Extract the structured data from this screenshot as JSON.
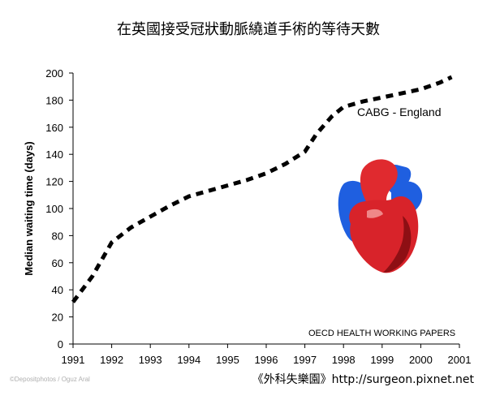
{
  "chart_data": {
    "type": "line",
    "title": "在英國接受冠狀動脈繞道手術的等待天數",
    "xlabel": "",
    "ylabel": "Median waiting time (days)",
    "xlim": [
      1991,
      2001
    ],
    "ylim": [
      0,
      200
    ],
    "x_ticks": [
      "1991",
      "1992",
      "1993",
      "1994",
      "1995",
      "1996",
      "1997",
      "1998",
      "1999",
      "2000",
      "2001"
    ],
    "y_ticks": [
      "0",
      "20",
      "40",
      "60",
      "80",
      "100",
      "120",
      "140",
      "160",
      "180",
      "200"
    ],
    "grid": false,
    "series": [
      {
        "name": "CABG - England",
        "style": "dashed",
        "color": "#000000",
        "x": [
          1991.0,
          1991.5,
          1992.0,
          1992.5,
          1993.0,
          1993.5,
          1994.0,
          1994.5,
          1995.0,
          1995.5,
          1996.0,
          1996.5,
          1997.0,
          1997.3,
          1997.7,
          1998.0,
          1998.5,
          1999.0,
          1999.5,
          2000.0,
          2000.5,
          2000.8
        ],
        "y": [
          31,
          50,
          75,
          86,
          94,
          102,
          109,
          113,
          117,
          121,
          126,
          133,
          142,
          155,
          168,
          175,
          179,
          182,
          185,
          188,
          193,
          197
        ]
      }
    ],
    "annotations": {
      "series_label": "CABG - England",
      "source": "OECD HEALTH WORKING PAPERS"
    }
  },
  "footer": {
    "credit": "《外科失樂園》http://surgeon.pixnet.net",
    "watermark": "©Depositphotos / Oguz Aral"
  },
  "heart_colors": {
    "ventricle": "#d8232a",
    "ventricle_shadow": "#8e0f14",
    "vessels": "#1f5fe0",
    "vessels_dark": "#0d2f8a",
    "aorta": "#e02a2f"
  }
}
